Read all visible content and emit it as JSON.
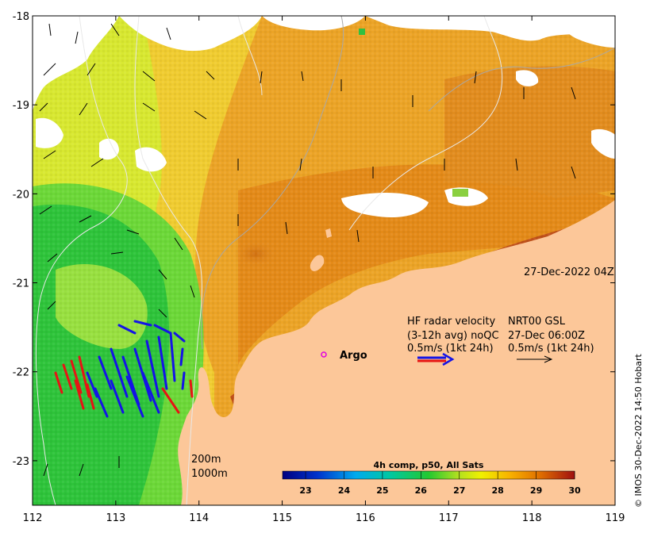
{
  "map": {
    "lon_range": [
      112,
      119
    ],
    "lat_range": [
      -23.5,
      -18
    ],
    "x_ticks": [
      "112",
      "113",
      "114",
      "115",
      "116",
      "117",
      "118",
      "119"
    ],
    "y_ticks": [
      "-18",
      "-19",
      "-20",
      "-21",
      "-22",
      "-23"
    ],
    "timestamp": "27-Dec-2022 04Z",
    "radar": {
      "line1_left": "HF radar velocity",
      "line1_right": "NRT00 GSL",
      "line2_left": "(3-12h avg) noQC",
      "line2_right": "27-Dec 06:00Z",
      "line3_left": "0.5m/s (1kt 24h)",
      "line3_right": "0.5m/s (1kt 24h)"
    },
    "argo_label": "Argo",
    "contours": {
      "c200": "200m",
      "c1000": "1000m"
    },
    "colorbar": {
      "title": "4h comp, p50, All Sats",
      "ticks": [
        "23",
        "24",
        "25",
        "26",
        "27",
        "28",
        "29",
        "30"
      ],
      "range": [
        22.4,
        30
      ]
    },
    "credit": "© IMOS 30-Dec-2022 14:50 Hobart",
    "colors": {
      "land": "#fcc799",
      "cloud": "#ffffff",
      "radar_blue": "#1414e6",
      "radar_red": "#e61414"
    }
  }
}
